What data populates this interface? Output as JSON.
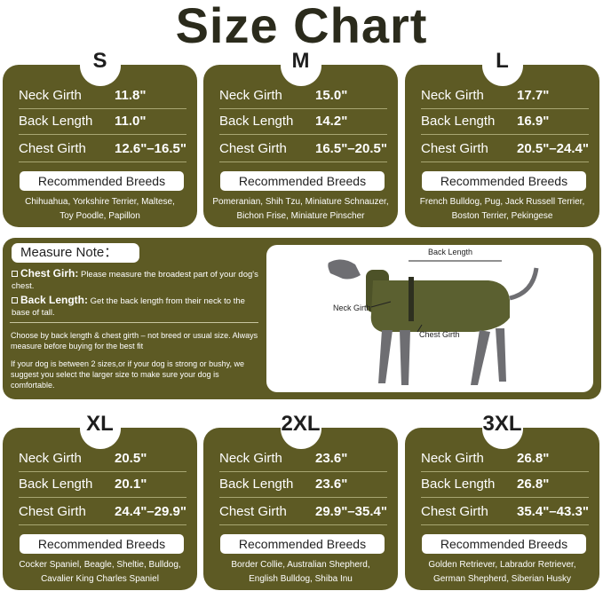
{
  "title": "Size Chart",
  "colors": {
    "panel": "#5d5a24",
    "title": "#2b2b1c"
  },
  "labels": {
    "neck": "Neck Girth",
    "back": "Back Length",
    "chest": "Chest Girth",
    "recommended": "Recommended Breeds"
  },
  "sizes": [
    {
      "size": "S",
      "neck": "11.8\"",
      "back": "11.0\"",
      "chest": "12.6\"–16.5\"",
      "breeds": [
        "Chihuahua, Yorkshire Terrier, Maltese,",
        "Toy Poodle, Papillon"
      ]
    },
    {
      "size": "M",
      "neck": "15.0\"",
      "back": "14.2\"",
      "chest": "16.5\"–20.5\"",
      "breeds": [
        "Pomeranian, Shih Tzu, Miniature Schnauzer,",
        "Bichon Frise, Miniature Pinscher"
      ]
    },
    {
      "size": "L",
      "neck": "17.7\"",
      "back": "16.9\"",
      "chest": "20.5\"–24.4\"",
      "breeds": [
        "French Bulldog, Pug, Jack Russell Terrier,",
        "Boston Terrier, Pekingese"
      ]
    },
    {
      "size": "XL",
      "neck": "20.5\"",
      "back": "20.1\"",
      "chest": "24.4\"–29.9\"",
      "breeds": [
        "Cocker Spaniel, Beagle, Sheltie, Bulldog,",
        "Cavalier King Charles Spaniel"
      ]
    },
    {
      "size": "2XL",
      "neck": "23.6\"",
      "back": "23.6\"",
      "chest": "29.9\"–35.4\"",
      "breeds": [
        "Border Collie, Australian Shepherd,",
        "English Bulldog, Shiba Inu"
      ]
    },
    {
      "size": "3XL",
      "neck": "26.8\"",
      "back": "26.8\"",
      "chest": "35.4\"–43.3\"",
      "breeds": [
        "Golden Retriever, Labrador Retriever,",
        "German Shepherd, Siberian Husky"
      ]
    }
  ],
  "note": {
    "title": "Measure Note：",
    "chest_term": "Chest Girh:",
    "chest_text": " Please measure the broadest part of your dog's chest.",
    "back_term": "Back Length:",
    "back_text": " Get the back length from their neck to the base of tall.",
    "para1": "Choose by back length & chest girth – not breed or usual size. Always measure before buying for the best fit",
    "para2": "If your dog is between 2 sizes,or if your dog is strong or bushy, we suggest you select the larger size to make sure your dog is comfortable."
  },
  "diagram": {
    "back": "Back Length",
    "neck": "Neck Girth",
    "chest": "Chest Girth"
  }
}
